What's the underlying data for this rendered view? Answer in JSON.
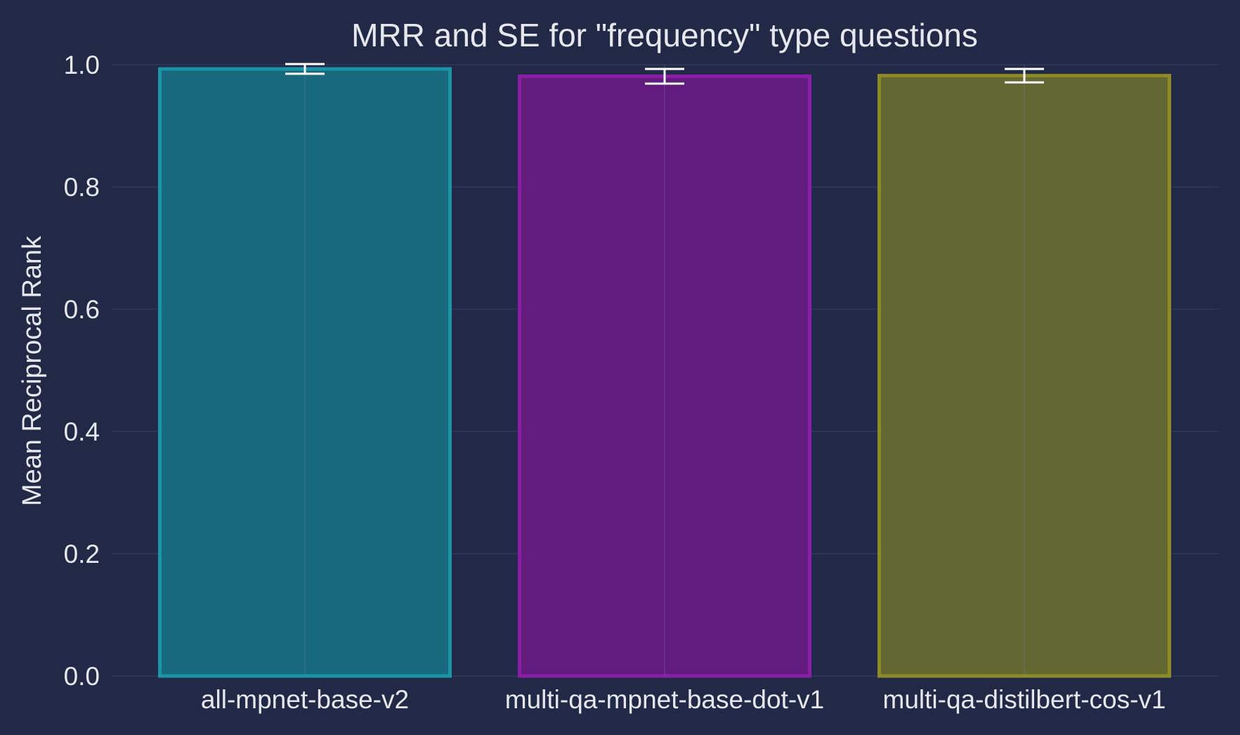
{
  "chart_data": {
    "type": "bar",
    "title": "MRR and SE for \"frequency\" type questions",
    "xlabel": "",
    "ylabel": "Mean Reciprocal Rank",
    "categories": [
      "all-mpnet-base-v2",
      "multi-qa-mpnet-base-dot-v1",
      "multi-qa-distilbert-cos-v1"
    ],
    "values": [
      0.993,
      0.981,
      0.982
    ],
    "errors": [
      0.008,
      0.012,
      0.011
    ],
    "ylim": [
      0,
      1.0
    ],
    "yticks": [
      "0.0",
      "0.2",
      "0.4",
      "0.6",
      "0.8",
      "1.0"
    ],
    "grid": true,
    "legend": "none",
    "colors": {
      "background": "#212946",
      "grid": "#2a3459",
      "errorbar": "#ffffff",
      "bar_fills": [
        "#18687e",
        "#621c7e",
        "#636732"
      ],
      "bar_edges": [
        "#1a95a8",
        "#8b1ea6",
        "#8c8b25"
      ]
    }
  }
}
